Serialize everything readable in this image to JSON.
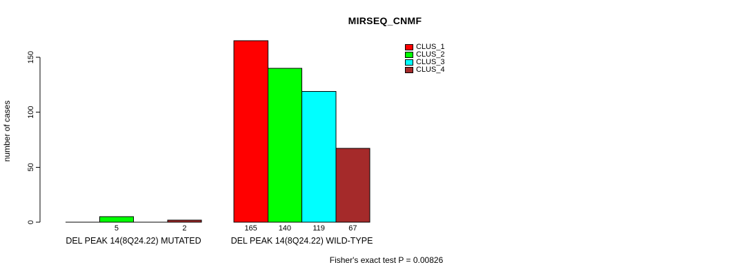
{
  "chart_data": {
    "type": "bar",
    "title": "MIRSEQ_CNMF",
    "ylabel": "number of cases",
    "xlabel": "",
    "footer": "Fisher's exact test P = 0.00826",
    "yticks": [
      0,
      50,
      100,
      150
    ],
    "ylim": [
      0,
      170
    ],
    "grid": false,
    "legend_position": "top-right-of-plot",
    "bar_border_color": "#000000",
    "text_color": "#000000",
    "background_color": "#ffffff",
    "series": [
      {
        "name": "CLUS_1",
        "color": "#ff0000"
      },
      {
        "name": "CLUS_2",
        "color": "#00ff00"
      },
      {
        "name": "CLUS_3",
        "color": "#00ffff"
      },
      {
        "name": "CLUS_4",
        "color": "#a52a2a"
      }
    ],
    "groups": [
      {
        "label": "DEL PEAK 14(8Q24.22) MUTATED",
        "values": [
          0,
          5,
          0,
          2
        ]
      },
      {
        "label": "DEL PEAK 14(8Q24.22) WILD-TYPE",
        "values": [
          165,
          140,
          119,
          67
        ]
      }
    ]
  }
}
